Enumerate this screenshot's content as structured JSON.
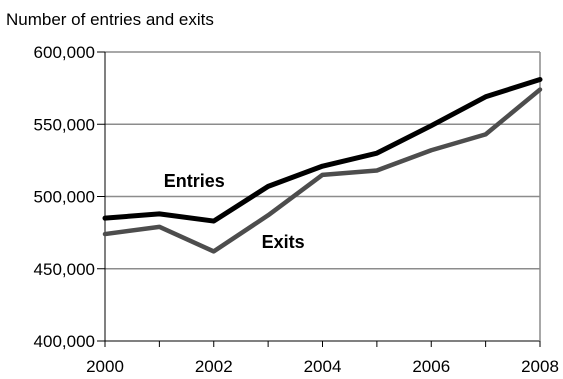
{
  "chart_data": {
    "type": "line",
    "title": "",
    "ylabel": "Number of entries and exits",
    "xlabel": "",
    "x": [
      2000,
      2001,
      2002,
      2003,
      2004,
      2005,
      2006,
      2007,
      2008
    ],
    "xlim": [
      2000,
      2008
    ],
    "ylim": [
      400000,
      600000
    ],
    "x_ticks": [
      2000,
      2002,
      2004,
      2006,
      2008
    ],
    "x_tick_labels": [
      "2000",
      "2002",
      "2004",
      "2006",
      "2008"
    ],
    "y_ticks": [
      400000,
      450000,
      500000,
      550000,
      600000
    ],
    "y_tick_labels": [
      "400,000",
      "450,000",
      "500,000",
      "550,000",
      "600,000"
    ],
    "grid": "horizontal",
    "legend": "none (series labelled directly on plot)",
    "series": [
      {
        "name": "Entries",
        "color": "#000000",
        "values": [
          485000,
          488000,
          483000,
          507000,
          521000,
          530000,
          549000,
          569000,
          581000
        ]
      },
      {
        "name": "Exits",
        "color": "#4d4d4d",
        "values": [
          474000,
          479000,
          462000,
          487000,
          515000,
          518000,
          532000,
          543000,
          574000
        ]
      }
    ]
  }
}
